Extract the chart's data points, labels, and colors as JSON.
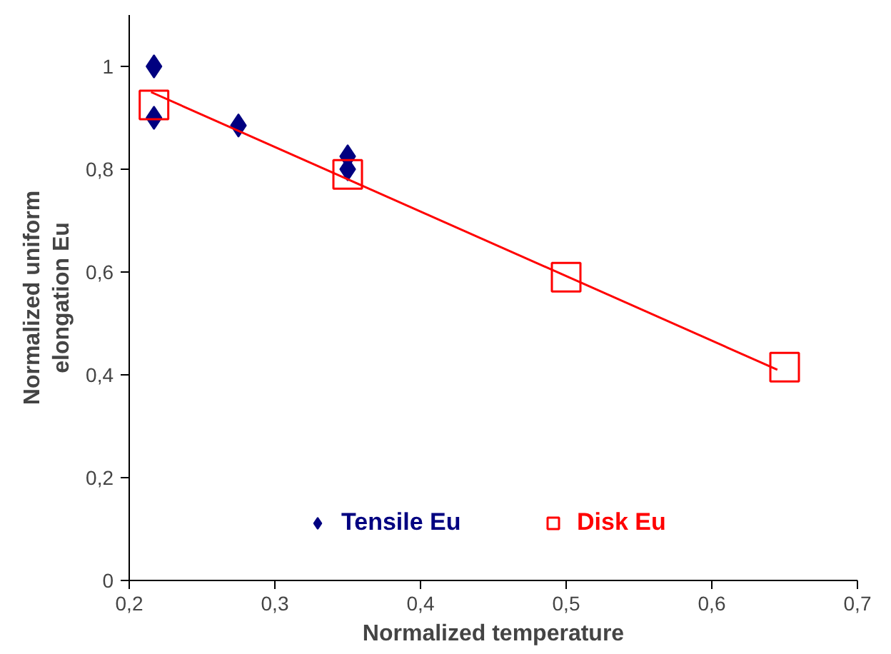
{
  "chart_data": {
    "type": "scatter",
    "xlabel": "Normalized temperature",
    "ylabel": "Normalized uniform elongation Eu",
    "xlim": [
      0.2,
      0.7
    ],
    "ylim": [
      0,
      1.1
    ],
    "xticks": [
      {
        "value": 0.2,
        "label": "0,2"
      },
      {
        "value": 0.3,
        "label": "0,3"
      },
      {
        "value": 0.4,
        "label": "0,4"
      },
      {
        "value": 0.5,
        "label": "0,5"
      },
      {
        "value": 0.6,
        "label": "0,6"
      },
      {
        "value": 0.7,
        "label": "0,7"
      }
    ],
    "yticks": [
      0,
      {
        "value": 0.2,
        "label": "0,2"
      },
      {
        "value": 0.4,
        "label": "0,4"
      },
      {
        "value": 0.6,
        "label": "0,6"
      },
      {
        "value": 0.8,
        "label": "0,8"
      },
      1
    ],
    "legend": "bottom",
    "series": [
      {
        "name": "Tensile Eu",
        "color": "#000080",
        "marker": "diamond",
        "x": [
          0.217,
          0.217,
          0.275,
          0.35,
          0.35
        ],
        "values": [
          1.0,
          0.9,
          0.885,
          0.825,
          0.8
        ]
      },
      {
        "name": "Disk Eu",
        "color": "#ff0000",
        "marker": "square",
        "x": [
          0.217,
          0.35,
          0.5,
          0.65
        ],
        "values": [
          0.925,
          0.79,
          0.59,
          0.415
        ]
      },
      {
        "type": "line",
        "color": "#ff0000",
        "x": [
          0.215,
          0.645
        ],
        "values": [
          0.95,
          0.41
        ]
      }
    ]
  }
}
